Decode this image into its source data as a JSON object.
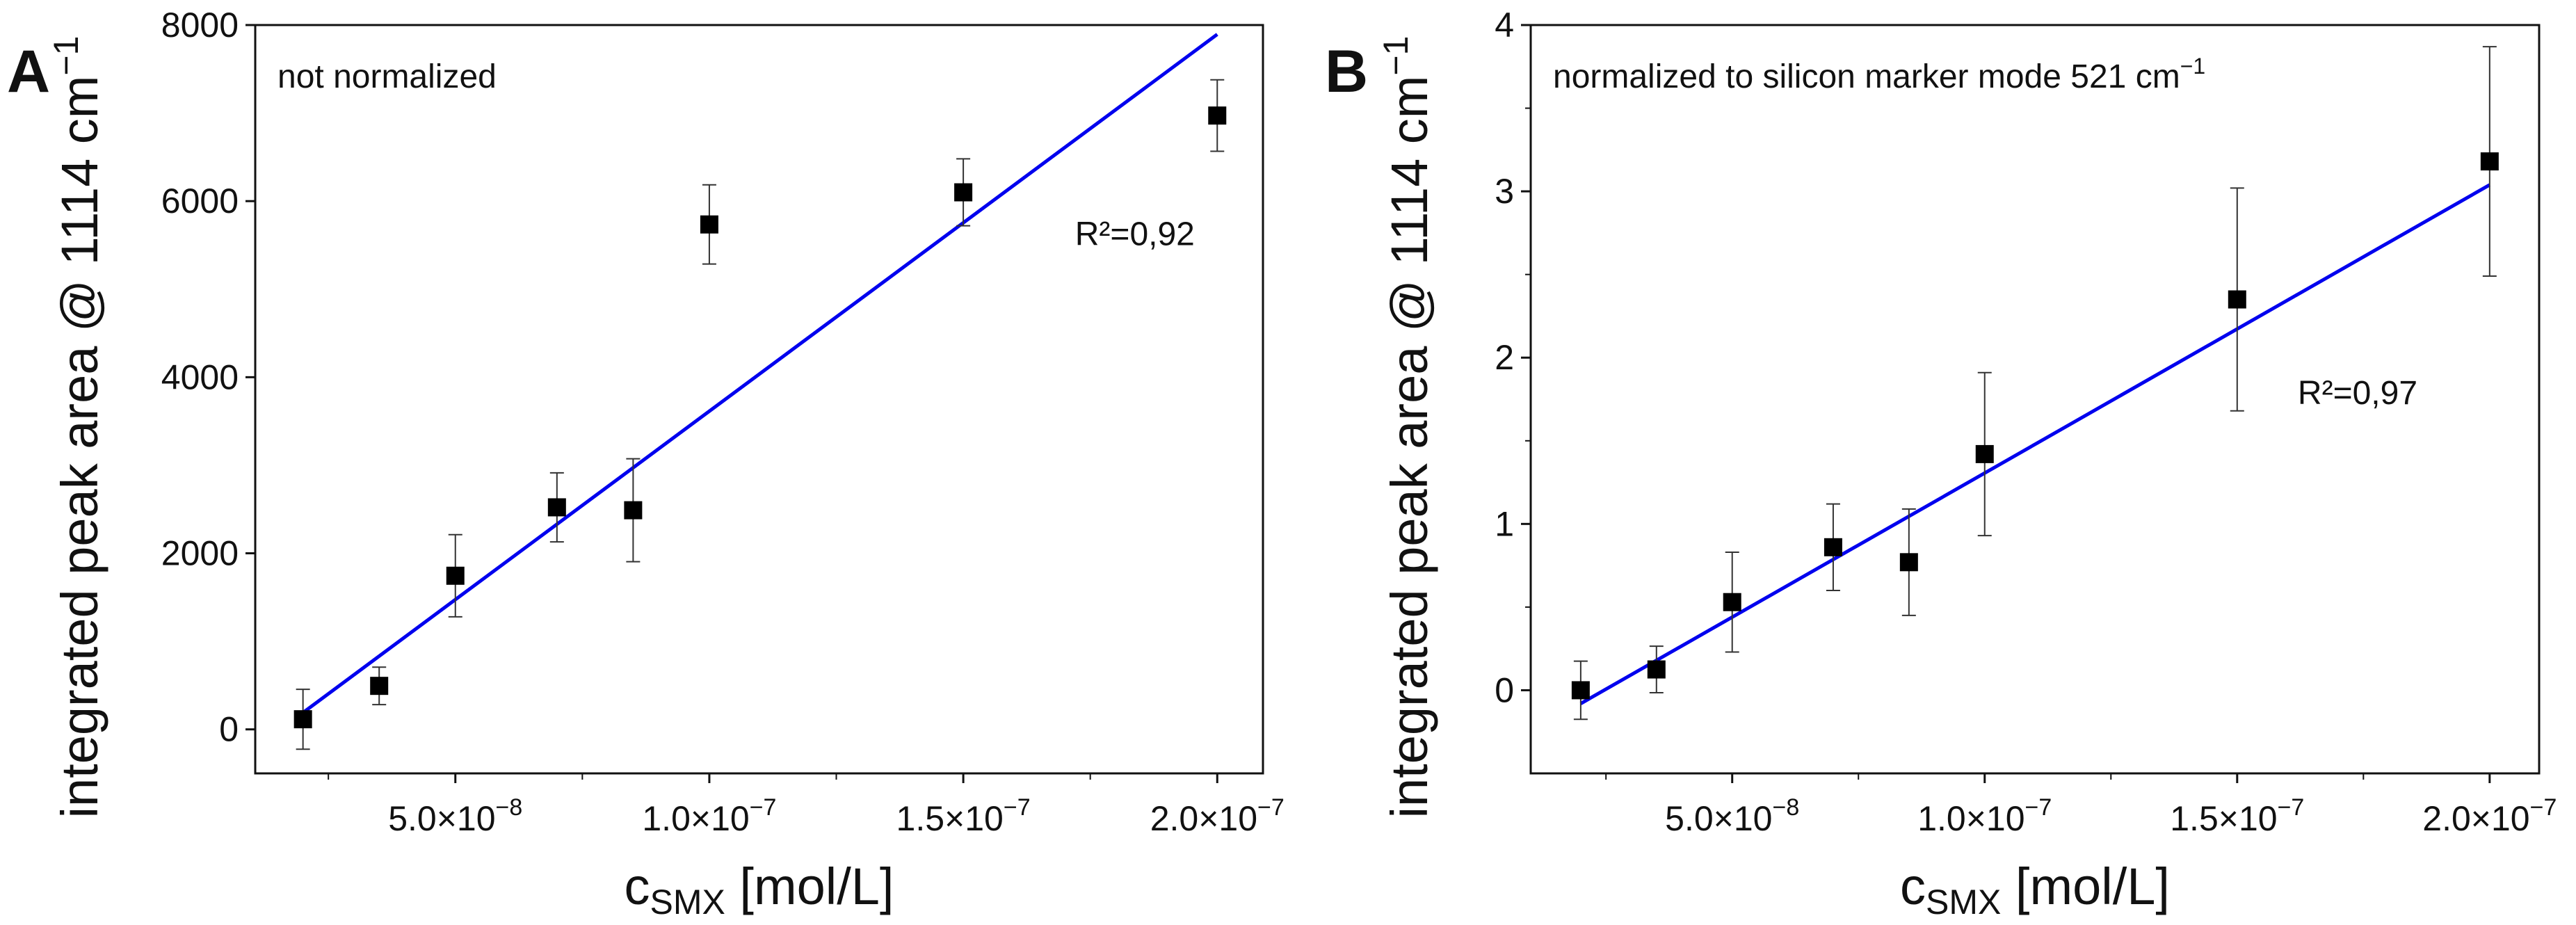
{
  "chart_data": [
    {
      "type": "scatter",
      "panel_label": "A",
      "annotation": "not normalized",
      "r2_label": "R²=0,92",
      "r2_pos": {
        "x": 1.72e-07,
        "y": 5500
      },
      "xlabel_main": "c",
      "xlabel_sub": "SMX",
      "xlabel_unit": " [mol/L]",
      "ylabel": "integrated peak area @ 1114 cm",
      "ylabel_sup": "−1",
      "xlim": [
        1.06e-08,
        2.09e-07
      ],
      "ylim": [
        -500,
        8000
      ],
      "xticks": [
        {
          "v": 5e-08,
          "m": "5.0×10",
          "e": "−8"
        },
        {
          "v": 1e-07,
          "m": "1.0×10",
          "e": "−7"
        },
        {
          "v": 1.5e-07,
          "m": "1.5×10",
          "e": "−7"
        },
        {
          "v": 2e-07,
          "m": "2.0×10",
          "e": "−7"
        }
      ],
      "xminor": [
        2.5e-08,
        7.5e-08,
        1.25e-07,
        1.75e-07
      ],
      "yticks": [
        0,
        2000,
        4000,
        6000,
        8000
      ],
      "yminor": [],
      "series": [
        {
          "name": "data",
          "x": [
            2e-08,
            3.5e-08,
            5e-08,
            7e-08,
            8.5e-08,
            1e-07,
            1.5e-07,
            2e-07
          ],
          "y": [
            115,
            494,
            1745,
            2522,
            2489,
            5735,
            6100,
            6972
          ],
          "err": [
            340,
            213,
            467,
            392,
            585,
            450,
            380,
            406
          ]
        }
      ],
      "fit": {
        "slope": 42800000000.0,
        "intercept": -666,
        "x_range": [
          2e-08,
          2e-07
        ],
        "color": "#0000ee"
      }
    },
    {
      "type": "scatter",
      "panel_label": "B",
      "annotation": "normalized to silicon marker mode 521 cm",
      "annotation_sup": "−1",
      "r2_label": "R²=0,97",
      "r2_pos": {
        "x": 1.62e-07,
        "y": 1.72
      },
      "xlabel_main": "c",
      "xlabel_sub": "SMX",
      "xlabel_unit": " [mol/L]",
      "ylabel": "integrated peak area @ 1114 cm",
      "ylabel_sup": "−1",
      "xlim": [
        1.01e-08,
        2.098e-07
      ],
      "ylim": [
        -0.5,
        4
      ],
      "xticks": [
        {
          "v": 5e-08,
          "m": "5.0×10",
          "e": "−8"
        },
        {
          "v": 1e-07,
          "m": "1.0×10",
          "e": "−7"
        },
        {
          "v": 1.5e-07,
          "m": "1.5×10",
          "e": "−7"
        },
        {
          "v": 2e-07,
          "m": "2.0×10",
          "e": "−7"
        }
      ],
      "xminor": [
        2.5e-08,
        7.5e-08,
        1.25e-07,
        1.75e-07
      ],
      "yticks": [
        0,
        1,
        2,
        3,
        4
      ],
      "yminor": [
        0.5,
        1.5,
        2.5,
        3.5
      ],
      "series": [
        {
          "name": "data",
          "x": [
            2e-08,
            3.5e-08,
            5e-08,
            7e-08,
            8.5e-08,
            1e-07,
            1.5e-07,
            2e-07
          ],
          "y": [
            0.0,
            0.125,
            0.53,
            0.86,
            0.77,
            1.42,
            2.35,
            3.18
          ],
          "err": [
            0.175,
            0.14,
            0.3,
            0.26,
            0.32,
            0.49,
            0.67,
            0.69
          ]
        }
      ],
      "fit": {
        "slope": 17330000.0,
        "intercept": -0.427,
        "x_range": [
          2e-08,
          2e-07
        ],
        "color": "#0000ee"
      }
    }
  ]
}
